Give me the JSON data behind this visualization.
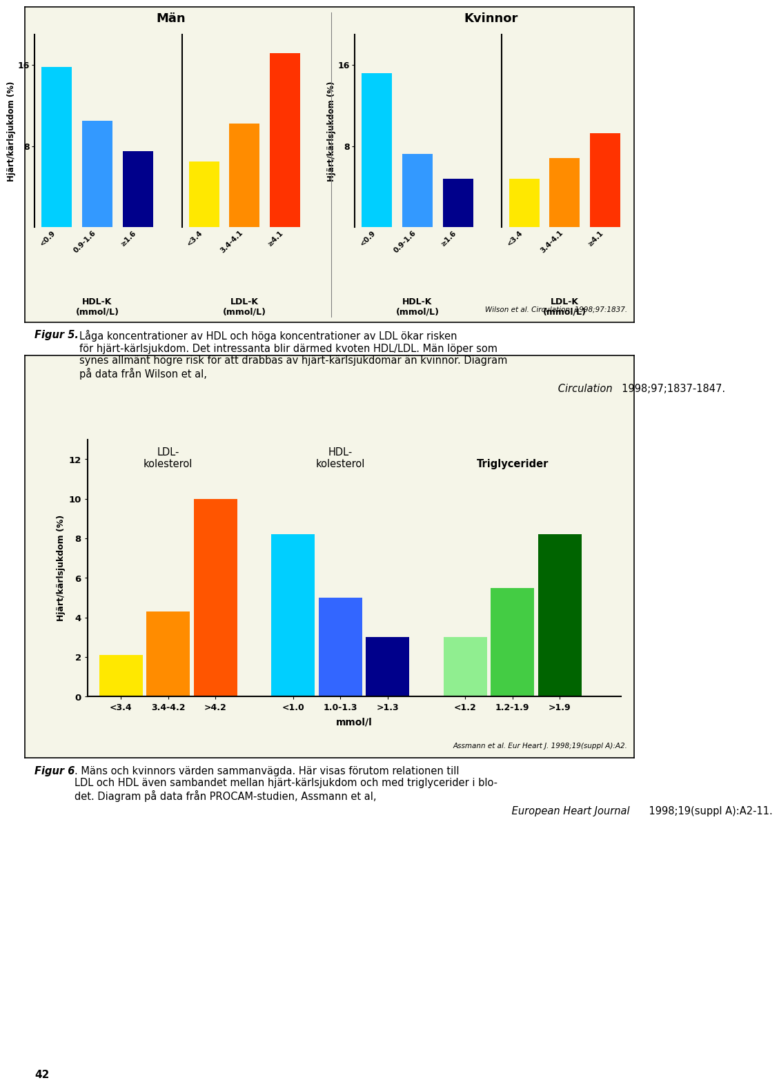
{
  "fig5": {
    "title_men": "Män",
    "title_women": "Kvinnor",
    "ylabel": "Hjärt/kärlsjukdom (%)",
    "yticks": [
      8,
      16
    ],
    "ylim": [
      0,
      19
    ],
    "men_hdl": {
      "labels": [
        "<0.9",
        "0.9-1.6",
        "≥1.6"
      ],
      "values": [
        15.8,
        10.5,
        7.5
      ],
      "colors": [
        "#00CFFF",
        "#3399FF",
        "#00008B"
      ]
    },
    "men_ldl": {
      "labels": [
        "<3.4",
        "3.4-4.1",
        "≥4.1"
      ],
      "values": [
        6.5,
        10.2,
        17.2
      ],
      "colors": [
        "#FFE800",
        "#FF8C00",
        "#FF3300"
      ]
    },
    "women_hdl": {
      "labels": [
        "<0.9",
        "0.9-1.6",
        "≥1.6"
      ],
      "values": [
        15.2,
        7.2,
        4.8
      ],
      "colors": [
        "#00CFFF",
        "#3399FF",
        "#00008B"
      ]
    },
    "women_ldl": {
      "labels": [
        "<3.4",
        "3.4-4.1",
        "≥4.1"
      ],
      "values": [
        4.8,
        6.8,
        9.3
      ],
      "colors": [
        "#FFE800",
        "#FF8C00",
        "#FF3300"
      ]
    },
    "citation": "Wilson et al. Circulation. 1998;97:1837."
  },
  "fig6": {
    "ylabel": "Hjärt/kärlsjukdom (%)",
    "xlabel": "mmol/l",
    "yticks": [
      0,
      2,
      4,
      6,
      8,
      10,
      12
    ],
    "ylim": [
      0,
      13
    ],
    "ldl": {
      "label": "LDL-\nkolesterol",
      "sublabels": [
        "<3.4",
        "3.4-4.2",
        ">4.2"
      ],
      "values": [
        2.1,
        4.3,
        10.0
      ],
      "colors": [
        "#FFE800",
        "#FF8C00",
        "#FF5500"
      ]
    },
    "hdl": {
      "label": "HDL-\nkolesterol",
      "sublabels": [
        "<1.0",
        "1.0-1.3",
        ">1.3"
      ],
      "values": [
        8.2,
        5.0,
        3.0
      ],
      "colors": [
        "#00CFFF",
        "#3366FF",
        "#00008B"
      ]
    },
    "trig": {
      "label": "Triglycerider",
      "sublabels": [
        "<1.2",
        "1.2-1.9",
        ">1.9"
      ],
      "values": [
        3.0,
        5.5,
        8.2
      ],
      "colors": [
        "#90EE90",
        "#44CC44",
        "#006400"
      ]
    },
    "citation": "Assmann et al. Eur Heart J. 1998;19(suppl A):A2."
  },
  "caption5_bold": "Figur 5.",
  "caption5_normal": " Låga koncentrationer av HDL och höga koncentrationer av LDL ökar risken för hjärt-kärlsjukdom. Det intressanta blir därmed kvoten HDL/LDL. Män löper som synes allmänt högre risk för att drabbas av hjärt-kärlsjukdomar än kvinnor. Diagram på data från Wilson et al, ",
  "caption5_italic": "Circulation",
  "caption5_end": " 1998;97;1837-1847.",
  "caption6_bold": "Figur 6",
  "caption6_normal": ". Mäns och kvinnors värden sammanvägda. Här visas förutom relationen till LDL och HDL även sambandet mellan hjärt-kärlsjukdom och med triglycerider i blodet. Diagram på data från PROCAM-studien, Assmann et al, ",
  "caption6_italic": "European Heart Journal",
  "caption6_end": " 1998;19(suppl A):A2-11.",
  "page_number": "42"
}
